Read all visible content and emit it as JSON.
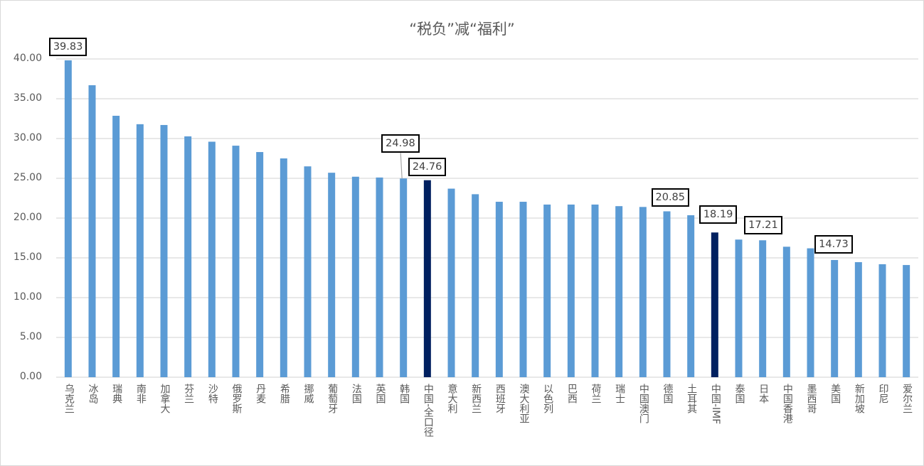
{
  "chart_data": {
    "type": "bar",
    "title": "“税负”减“福利”",
    "xlabel": "",
    "ylabel": "",
    "ylim": [
      0,
      40
    ],
    "yticks": [
      "0.00",
      "5.00",
      "10.00",
      "15.00",
      "20.00",
      "25.00",
      "30.00",
      "35.00",
      "40.00"
    ],
    "grid": true,
    "legend": "none",
    "categories": [
      "乌克兰",
      "冰岛",
      "瑞典",
      "南非",
      "加拿大",
      "芬兰",
      "沙特",
      "俄罗斯",
      "丹麦",
      "希腊",
      "挪威",
      "葡萄牙",
      "法国",
      "英国",
      "韩国",
      "中国-全口径",
      "意大利",
      "新西兰",
      "西班牙",
      "澳大利亚",
      "以色列",
      "巴西",
      "荷兰",
      "瑞士",
      "中国澳门",
      "德国",
      "土耳其",
      "中国-IMF",
      "泰国",
      "日本",
      "中国香港",
      "墨西哥",
      "美国",
      "新加坡",
      "印尼",
      "爱尔兰"
    ],
    "values": [
      39.83,
      36.7,
      32.86,
      31.8,
      31.7,
      30.27,
      29.6,
      29.1,
      28.3,
      27.5,
      26.5,
      25.7,
      25.2,
      25.1,
      24.98,
      24.76,
      23.7,
      23.0,
      22.05,
      22.05,
      21.7,
      21.7,
      21.7,
      21.5,
      21.4,
      20.85,
      20.36,
      18.19,
      17.3,
      17.21,
      16.4,
      16.2,
      14.73,
      14.46,
      14.2,
      14.1
    ],
    "data_labels": {
      "乌克兰": "39.83",
      "韩国": "24.98",
      "中国-全口径": "24.76",
      "德国": "20.85",
      "中国-IMF": "18.19",
      "日本": "17.21",
      "美国": "14.73"
    },
    "highlighted": [
      "中国-全口径",
      "中国-IMF"
    ],
    "colors": {
      "bar": "#5b9bd5",
      "highlight": "#002060",
      "grid": "#d9d9d9"
    }
  }
}
